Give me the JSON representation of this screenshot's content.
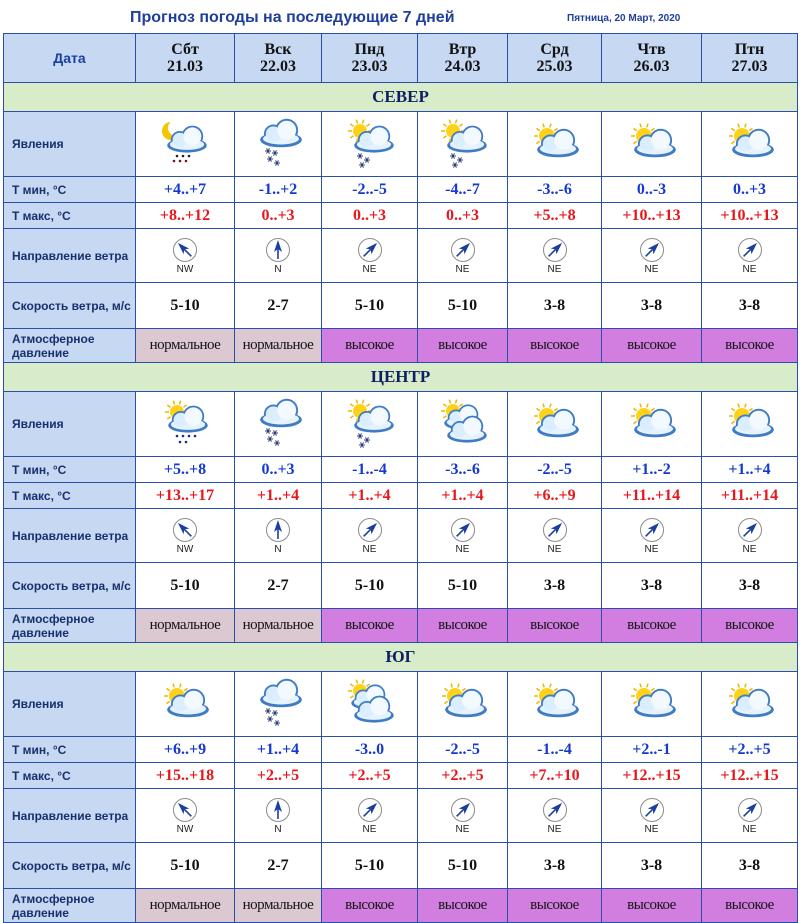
{
  "header": {
    "title": "Прогноз погоды на последующие 7 дней",
    "date": "Пятница, 20 Март, 2020"
  },
  "table": {
    "date_label": "Дата",
    "row_labels": {
      "phenomena": "Явления",
      "tmin": "Т мин, °С",
      "tmax": "Т макс, °С",
      "wind_dir": "Направление ветра",
      "wind_speed": "Скорость ветра, м/с",
      "pressure": "Атмосферное давление"
    }
  },
  "days": [
    {
      "name": "Сбт",
      "date": "21.03"
    },
    {
      "name": "Вск",
      "date": "22.03"
    },
    {
      "name": "Пнд",
      "date": "23.03"
    },
    {
      "name": "Втр",
      "date": "24.03"
    },
    {
      "name": "Срд",
      "date": "25.03"
    },
    {
      "name": "Чтв",
      "date": "26.03"
    },
    {
      "name": "Птн",
      "date": "27.03"
    }
  ],
  "colors": {
    "tmin": "#1438d2",
    "tmax": "#e8151b",
    "pressure_normal": "#dcc8d0",
    "pressure_high": "#d27ee0",
    "region_band": "#d9ecc9",
    "label_cell": "#c7d8f2"
  },
  "regions": [
    {
      "name": "СЕВЕР",
      "icons": [
        "moon-cloud-rain-icon",
        "cloud-snow-icon",
        "sun-cloud-snow-icon",
        "sun-cloud-snow-icon",
        "sun-cloud-icon",
        "sun-cloud-icon",
        "sun-cloud-icon"
      ],
      "tmin": [
        "+4..+7",
        "-1..+2",
        "-2..-5",
        "-4..-7",
        "-3..-6",
        "0..-3",
        "0..+3"
      ],
      "tmax": [
        "+8..+12",
        "0..+3",
        "0..+3",
        "0..+3",
        "+5..+8",
        "+10..+13",
        "+10..+13"
      ],
      "wind_dir": [
        "NW",
        "N",
        "NE",
        "NE",
        "NE",
        "NE",
        "NE"
      ],
      "wind_speed": [
        "5-10",
        "2-7",
        "5-10",
        "5-10",
        "3-8",
        "3-8",
        "3-8"
      ],
      "pressure": [
        "нормальное",
        "нормальное",
        "высокое",
        "высокое",
        "высокое",
        "высокое",
        "высокое"
      ],
      "pressure_type": [
        "normal",
        "normal",
        "high",
        "high",
        "high",
        "high",
        "high"
      ]
    },
    {
      "name": "ЦЕНТР",
      "icons": [
        "sun-cloud-rain-icon",
        "cloud-snow-icon",
        "sun-cloud-snow-icon",
        "sun-clouds-icon",
        "sun-cloud-icon",
        "sun-cloud-icon",
        "sun-cloud-icon"
      ],
      "tmin": [
        "+5..+8",
        "0..+3",
        "-1..-4",
        "-3..-6",
        "-2..-5",
        "+1..-2",
        "+1..+4"
      ],
      "tmax": [
        "+13..+17",
        "+1..+4",
        "+1..+4",
        "+1..+4",
        "+6..+9",
        "+11..+14",
        "+11..+14"
      ],
      "wind_dir": [
        "NW",
        "N",
        "NE",
        "NE",
        "NE",
        "NE",
        "NE"
      ],
      "wind_speed": [
        "5-10",
        "2-7",
        "5-10",
        "5-10",
        "3-8",
        "3-8",
        "3-8"
      ],
      "pressure": [
        "нормальное",
        "нормальное",
        "высокое",
        "высокое",
        "высокое",
        "высокое",
        "высокое"
      ],
      "pressure_type": [
        "normal",
        "normal",
        "high",
        "high",
        "high",
        "high",
        "high"
      ]
    },
    {
      "name": "ЮГ",
      "icons": [
        "sun-cloud-icon",
        "cloud-snow-icon",
        "sun-clouds-icon",
        "sun-cloud-icon",
        "sun-cloud-icon",
        "sun-cloud-icon",
        "sun-cloud-icon"
      ],
      "tmin": [
        "+6..+9",
        "+1..+4",
        "-3..0",
        "-2..-5",
        "-1..-4",
        "+2..-1",
        "+2..+5"
      ],
      "tmax": [
        "+15..+18",
        "+2..+5",
        "+2..+5",
        "+2..+5",
        "+7..+10",
        "+12..+15",
        "+12..+15"
      ],
      "wind_dir": [
        "NW",
        "N",
        "NE",
        "NE",
        "NE",
        "NE",
        "NE"
      ],
      "wind_speed": [
        "5-10",
        "2-7",
        "5-10",
        "5-10",
        "3-8",
        "3-8",
        "3-8"
      ],
      "pressure": [
        "нормальное",
        "нормальное",
        "высокое",
        "высокое",
        "высокое",
        "высокое",
        "высокое"
      ],
      "pressure_type": [
        "normal",
        "normal",
        "high",
        "high",
        "high",
        "high",
        "high"
      ]
    }
  ]
}
